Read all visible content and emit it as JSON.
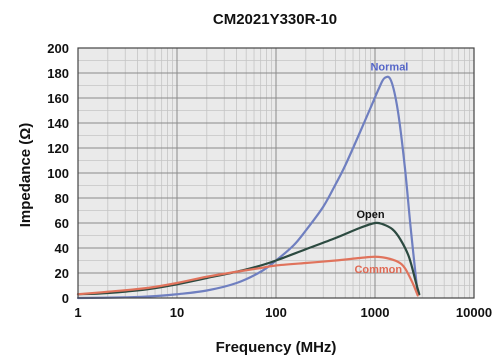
{
  "chart_data": {
    "type": "line",
    "title": "CM2021Y330R-10",
    "xlabel": "Frequency (MHz)",
    "ylabel": "Impedance (Ω)",
    "x_scale": "log",
    "xlim": [
      1,
      10000
    ],
    "ylim": [
      0,
      200
    ],
    "x_ticks": [
      1,
      10,
      100,
      1000,
      10000
    ],
    "x_tick_labels": [
      "1",
      "10",
      "100",
      "1000",
      "10000"
    ],
    "y_ticks": [
      0,
      20,
      40,
      60,
      80,
      100,
      120,
      140,
      160,
      180,
      200
    ],
    "y_tick_labels": [
      "0",
      "20",
      "40",
      "60",
      "80",
      "100",
      "120",
      "140",
      "160",
      "180",
      "200"
    ],
    "grid": true,
    "plot_background": "#eaeaea",
    "series": [
      {
        "name": "Normal",
        "color": "#6f7fc0",
        "label_color": "#5566c8",
        "x": [
          1,
          3,
          6,
          10,
          20,
          40,
          70,
          100,
          150,
          200,
          300,
          400,
          500,
          700,
          900,
          1100,
          1250,
          1450,
          1700,
          2000,
          2300,
          2700
        ],
        "y": [
          0,
          0.5,
          1.5,
          3,
          6,
          12,
          21,
          30,
          42,
          54,
          73,
          91,
          106,
          132,
          152,
          168,
          176,
          174,
          150,
          105,
          55,
          3
        ]
      },
      {
        "name": "Open",
        "color": "#2c4a40",
        "label_color": "#111111",
        "x": [
          1,
          2,
          5,
          10,
          20,
          40,
          70,
          100,
          200,
          400,
          700,
          1000,
          1200,
          1500,
          1800,
          2200,
          2600,
          2800
        ],
        "y": [
          3,
          4,
          7,
          11,
          16,
          21,
          26,
          30,
          39,
          48,
          56,
          60,
          59,
          55,
          47,
          33,
          12,
          3
        ]
      },
      {
        "name": "Common",
        "color": "#e0735c",
        "label_color": "#e06a55",
        "x": [
          1,
          2,
          5,
          10,
          20,
          40,
          70,
          100,
          200,
          400,
          700,
          1000,
          1300,
          1700,
          2000,
          2400,
          2700
        ],
        "y": [
          3,
          5,
          8,
          12,
          17,
          21,
          24,
          26,
          28,
          30,
          32,
          33,
          32,
          29,
          24,
          12,
          2
        ]
      }
    ],
    "series_labels": [
      {
        "name": "Normal",
        "x": 900,
        "y": 182
      },
      {
        "name": "Open",
        "x": 650,
        "y": 64
      },
      {
        "name": "Common",
        "x": 620,
        "y": 20
      }
    ]
  }
}
